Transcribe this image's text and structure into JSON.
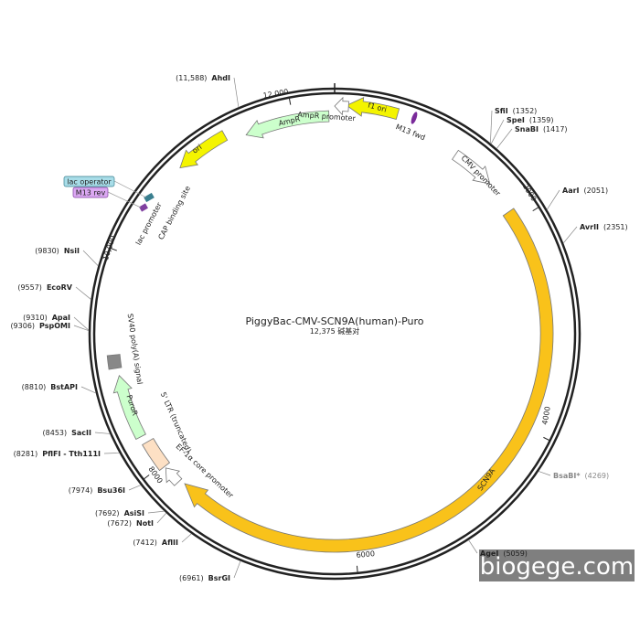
{
  "title": "PiggyBac-CMV-SCN9A(human)-Puro",
  "subtitle": "12,375 碱基对",
  "features": [
    {
      "label": "f1 ori"
    },
    {
      "label": "AmpR promoter"
    },
    {
      "label": "AmpR"
    },
    {
      "label": "ori"
    },
    {
      "label": "CMV promoter"
    },
    {
      "label": "SCN9A"
    },
    {
      "label": "PuroR"
    },
    {
      "label": "5' LTR (truncated)"
    },
    {
      "label": "EF-1α core promoter"
    },
    {
      "label": "SV40 poly(A) signal"
    },
    {
      "label": "CAP binding site"
    },
    {
      "label": "lac promoter"
    },
    {
      "label": "lac operator"
    },
    {
      "label": "M13 rev"
    },
    {
      "label": "M13 fwd"
    }
  ],
  "sites": [
    {
      "name": "AhdI",
      "position": "(11,588)"
    },
    {
      "name": "SfiI",
      "position": "(1352)"
    },
    {
      "name": "SpeI",
      "position": "(1359)"
    },
    {
      "name": "SnaBI",
      "position": "(1417)"
    },
    {
      "name": "AarI",
      "position": "(2051)"
    },
    {
      "name": "AvrII",
      "position": "(2351)"
    },
    {
      "name": "BsaBI*",
      "position": "(4269)"
    },
    {
      "name": "AgeI",
      "position": "(5059)"
    },
    {
      "name": "BsrGI",
      "position": "(6961)"
    },
    {
      "name": "AflII",
      "position": "(7412)"
    },
    {
      "name": "AsiSI",
      "position": "(7692)"
    },
    {
      "name": "NotI",
      "position": "(7672)"
    },
    {
      "name": "Bsu36I",
      "position": "(7974)"
    },
    {
      "name": "PflFI - Tth111I",
      "position": "(8281)"
    },
    {
      "name": "SacII",
      "position": "(8453)"
    },
    {
      "name": "BstAPI",
      "position": "(8810)"
    },
    {
      "name": "ApaI",
      "position": "(9310)"
    },
    {
      "name": "PspOMI",
      "position": "(9306)"
    },
    {
      "name": "EcoRV",
      "position": "(9557)"
    },
    {
      "name": "NsiI",
      "position": "(9830)"
    }
  ],
  "ruler": [
    "2000",
    "4000",
    "6000",
    "8000",
    "10,000",
    "12,000"
  ],
  "watermark": "biogege.com"
}
